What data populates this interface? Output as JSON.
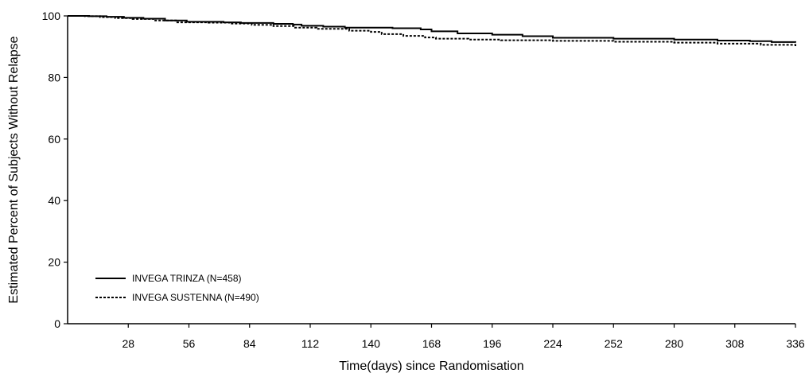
{
  "chart_data": {
    "type": "line",
    "title": "",
    "xlabel": "Time(days) since Randomisation",
    "ylabel": "Estimated Percent of Subjects Without Relapse",
    "xlim": [
      0,
      336
    ],
    "ylim": [
      0,
      100
    ],
    "x_ticks": [
      28,
      56,
      84,
      112,
      140,
      168,
      196,
      224,
      252,
      280,
      308,
      336
    ],
    "y_ticks": [
      0,
      20,
      40,
      60,
      80,
      100
    ],
    "grid": false,
    "legend_position": "bottom-left",
    "series": [
      {
        "name": "INVEGA TRINZA (N=458)",
        "line_style": "solid",
        "color": "#000000",
        "x": [
          0,
          10,
          18,
          26,
          35,
          45,
          55,
          72,
          80,
          95,
          104,
          108,
          118,
          128,
          150,
          163,
          168,
          180,
          196,
          210,
          224,
          252,
          280,
          300,
          315,
          325,
          336
        ],
        "y": [
          100,
          99.9,
          99.7,
          99.4,
          99.1,
          98.5,
          98.1,
          97.9,
          97.7,
          97.4,
          97.2,
          96.8,
          96.5,
          96.2,
          96.0,
          95.6,
          95.0,
          94.3,
          93.9,
          93.4,
          92.9,
          92.6,
          92.3,
          92.0,
          91.8,
          91.5,
          91.3
        ]
      },
      {
        "name": "INVEGA SUSTENNA (N=490)",
        "line_style": "dashed",
        "color": "#000000",
        "x": [
          0,
          8,
          15,
          22,
          30,
          40,
          50,
          65,
          75,
          85,
          95,
          105,
          115,
          130,
          140,
          145,
          155,
          165,
          170,
          185,
          200,
          224,
          252,
          280,
          300,
          320,
          336
        ],
        "y": [
          100,
          99.9,
          99.6,
          99.3,
          99.0,
          98.5,
          97.9,
          97.8,
          97.5,
          97.1,
          96.7,
          96.2,
          95.8,
          95.2,
          94.8,
          94.1,
          93.5,
          93.0,
          92.6,
          92.3,
          92.1,
          91.9,
          91.6,
          91.3,
          91.0,
          90.6,
          90.1
        ]
      }
    ]
  }
}
